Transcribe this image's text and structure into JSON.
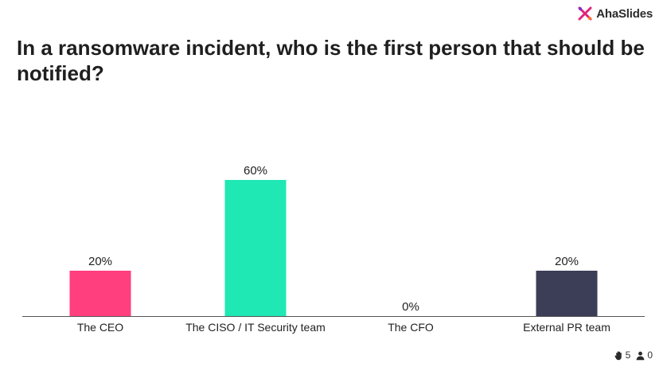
{
  "brand": {
    "name": "AhaSlides"
  },
  "question": "In a ransomware incident, who is the first person that should be notified?",
  "colors": {
    "ceo": "#ff3f7e",
    "ciso": "#20e8b4",
    "cfo": "#bfbfbf",
    "pr": "#3c3d56"
  },
  "chart_data": {
    "type": "bar",
    "categories": [
      "The CEO",
      "The CISO / IT Security team",
      "The CFO",
      "External PR team"
    ],
    "values": [
      20,
      60,
      0,
      20
    ],
    "value_labels": [
      "20%",
      "60%",
      "0%",
      "20%"
    ],
    "ylim": [
      0,
      60
    ],
    "grid": false,
    "legend": "none"
  },
  "footer": {
    "reactions": "5",
    "participants": "0"
  }
}
